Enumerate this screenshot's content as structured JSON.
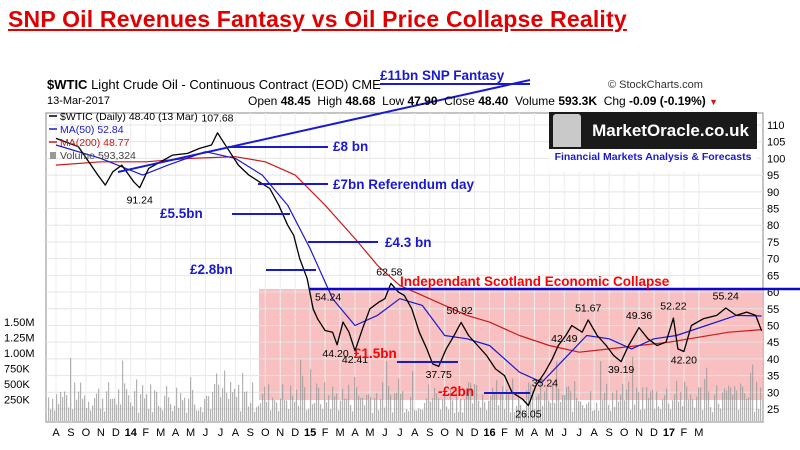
{
  "title": "SNP Oil Revenues Fantasy vs Oil Price Collapse Reality",
  "header": {
    "symbol": "$WTIC",
    "description": "Light Crude Oil - Continuous Contract (EOD)",
    "exchange": "CME",
    "date": "13-Mar-2017",
    "ohlc": {
      "open_label": "Open",
      "open": "48.45",
      "high_label": "High",
      "high": "48.68",
      "low_label": "Low",
      "low": "47.90",
      "close_label": "Close",
      "close": "48.40",
      "volume_label": "Volume",
      "volume": "593.3K",
      "chg_label": "Chg",
      "chg": "-0.09 (-0.19%)"
    },
    "copyright": "© StockCharts.com"
  },
  "logo": {
    "name": "MarketOracle.co.uk",
    "tagline": "Financial Markets Analysis & Forecasts"
  },
  "colors": {
    "price": "#000000",
    "ma50": "#1a1acc",
    "ma200": "#cc1a1a",
    "annotation": "#1a1acc",
    "collapse_line": "#0a0acc",
    "shade": "#f7b5b5",
    "title": "#e00000"
  },
  "chart_data": {
    "type": "line",
    "title": "SNP Oil Revenues Fantasy vs Oil Price Collapse Reality",
    "legend": [
      {
        "label": "$WTIC (Daily) 48.40 (13 Mar)"
      },
      {
        "label": "MA(50) 52.84"
      },
      {
        "label": "MA(200) 48.77"
      },
      {
        "label": "Volume 593,324"
      }
    ],
    "x_ticks": [
      "A",
      "S",
      "O",
      "N",
      "D",
      "14",
      "F",
      "M",
      "A",
      "M",
      "J",
      "J",
      "A",
      "S",
      "O",
      "N",
      "D",
      "15",
      "F",
      "M",
      "A",
      "M",
      "J",
      "J",
      "A",
      "S",
      "O",
      "N",
      "D",
      "16",
      "F",
      "M",
      "A",
      "M",
      "J",
      "J",
      "A",
      "S",
      "O",
      "N",
      "D",
      "17",
      "F",
      "M"
    ],
    "y_ticks": [
      25,
      30,
      35,
      40,
      45,
      50,
      55,
      60,
      65,
      70,
      75,
      80,
      85,
      90,
      95,
      100,
      105,
      110
    ],
    "y_range": [
      25,
      112
    ],
    "volume_ticks": [
      "1.50M",
      "1.25M",
      "1.00M",
      "750K",
      "500K",
      "250K"
    ],
    "series": [
      {
        "name": "$WTIC",
        "values": [
          [
            0,
            106
          ],
          [
            1.5,
            103.5
          ],
          [
            2.8,
            95
          ],
          [
            3.3,
            92
          ],
          [
            3.8,
            96
          ],
          [
            4.4,
            98
          ],
          [
            5.2,
            93
          ],
          [
            5.6,
            91.24
          ],
          [
            6.2,
            97
          ],
          [
            7.0,
            99
          ],
          [
            7.8,
            101
          ],
          [
            8.8,
            101.5
          ],
          [
            9.6,
            103
          ],
          [
            10.4,
            104
          ],
          [
            10.8,
            107.68
          ],
          [
            11.4,
            103.5
          ],
          [
            12.2,
            98
          ],
          [
            12.9,
            95
          ],
          [
            13.6,
            93
          ],
          [
            14.3,
            91
          ],
          [
            14.9,
            86
          ],
          [
            15.5,
            80
          ],
          [
            15.9,
            77
          ],
          [
            16.3,
            70
          ],
          [
            16.8,
            64
          ],
          [
            17.2,
            55
          ],
          [
            17.5,
            52
          ],
          [
            18.0,
            48.5
          ],
          [
            18.5,
            48
          ],
          [
            18.8,
            44.2
          ],
          [
            19.2,
            51
          ],
          [
            19.6,
            48
          ],
          [
            20.0,
            42.41
          ],
          [
            20.5,
            49
          ],
          [
            21.0,
            55
          ],
          [
            21.6,
            57
          ],
          [
            22.0,
            58
          ],
          [
            22.4,
            62.58
          ],
          [
            22.9,
            60
          ],
          [
            23.3,
            59
          ],
          [
            23.8,
            55
          ],
          [
            24.3,
            48
          ],
          [
            24.8,
            43
          ],
          [
            25.2,
            38.5
          ],
          [
            25.6,
            37.75
          ],
          [
            26.1,
            43
          ],
          [
            26.6,
            46.8
          ],
          [
            27.1,
            50.92
          ],
          [
            27.6,
            47
          ],
          [
            28.2,
            44
          ],
          [
            28.8,
            41
          ],
          [
            29.4,
            37
          ],
          [
            30.0,
            35
          ],
          [
            30.5,
            30
          ],
          [
            31.2,
            28
          ],
          [
            31.6,
            26.05
          ],
          [
            32.1,
            32
          ],
          [
            32.7,
            36
          ],
          [
            33.2,
            40
          ],
          [
            33.6,
            44
          ],
          [
            34.1,
            47
          ],
          [
            34.5,
            50
          ],
          [
            35.2,
            48
          ],
          [
            35.6,
            51.67
          ],
          [
            36.2,
            47
          ],
          [
            36.8,
            44
          ],
          [
            37.3,
            41
          ],
          [
            37.8,
            39.19
          ],
          [
            38.3,
            44
          ],
          [
            39.0,
            49.36
          ],
          [
            39.6,
            46
          ],
          [
            40.2,
            44
          ],
          [
            40.8,
            45
          ],
          [
            41.3,
            52.22
          ],
          [
            41.6,
            43
          ],
          [
            42.0,
            42.2
          ],
          [
            42.5,
            50
          ],
          [
            43.3,
            52
          ],
          [
            44.2,
            53
          ],
          [
            44.8,
            55.24
          ],
          [
            45.5,
            53
          ],
          [
            46.2,
            54
          ],
          [
            46.8,
            53
          ],
          [
            47.2,
            48.4
          ]
        ]
      },
      {
        "name": "MA(50)",
        "values": [
          [
            0,
            104
          ],
          [
            3,
            100
          ],
          [
            5.8,
            95
          ],
          [
            7.5,
            98
          ],
          [
            10,
            102
          ],
          [
            12,
            100
          ],
          [
            13.8,
            95
          ],
          [
            15.5,
            86
          ],
          [
            17,
            73
          ],
          [
            18.5,
            58
          ],
          [
            20,
            50
          ],
          [
            21.5,
            53
          ],
          [
            23,
            58
          ],
          [
            24.5,
            56
          ],
          [
            26,
            47
          ],
          [
            27.5,
            46
          ],
          [
            29,
            44
          ],
          [
            31,
            36
          ],
          [
            32.5,
            33
          ],
          [
            34,
            40
          ],
          [
            35.5,
            47
          ],
          [
            37,
            46
          ],
          [
            38.5,
            43
          ],
          [
            40,
            46
          ],
          [
            41.5,
            47
          ],
          [
            43.5,
            50
          ],
          [
            45.5,
            53
          ],
          [
            47.2,
            52.84
          ]
        ]
      },
      {
        "name": "MA(200)",
        "values": [
          [
            0,
            98
          ],
          [
            3,
            99
          ],
          [
            6,
            99
          ],
          [
            9,
            100
          ],
          [
            12,
            100.5
          ],
          [
            14,
            99
          ],
          [
            16,
            95
          ],
          [
            18,
            86
          ],
          [
            20,
            76
          ],
          [
            21.5,
            68
          ],
          [
            23,
            62
          ],
          [
            24.5,
            59
          ],
          [
            26,
            56
          ],
          [
            27.5,
            53
          ],
          [
            29,
            51
          ],
          [
            31,
            47
          ],
          [
            33,
            44
          ],
          [
            35,
            42
          ],
          [
            37,
            43
          ],
          [
            39,
            44
          ],
          [
            41,
            45
          ],
          [
            43,
            46.5
          ],
          [
            45,
            48
          ],
          [
            47.2,
            48.77
          ]
        ]
      }
    ],
    "annotations": [
      "£11bn SNP Fantasy",
      "£8 bn",
      "£7bn Referendum day",
      "£5.5bn",
      "£4.3 bn",
      "£2.8bn",
      "Independant Scotland Economic Collapse",
      "£1.5bn",
      "-£2bn"
    ],
    "price_labels": [
      "107.68",
      "91.24",
      "54.24",
      "62.58",
      "50.92",
      "44.20",
      "42.41",
      "37.75",
      "51.67",
      "49.36",
      "52.22",
      "55.24",
      "42.49",
      "35.24",
      "39.19",
      "42.20",
      "26.05"
    ]
  }
}
